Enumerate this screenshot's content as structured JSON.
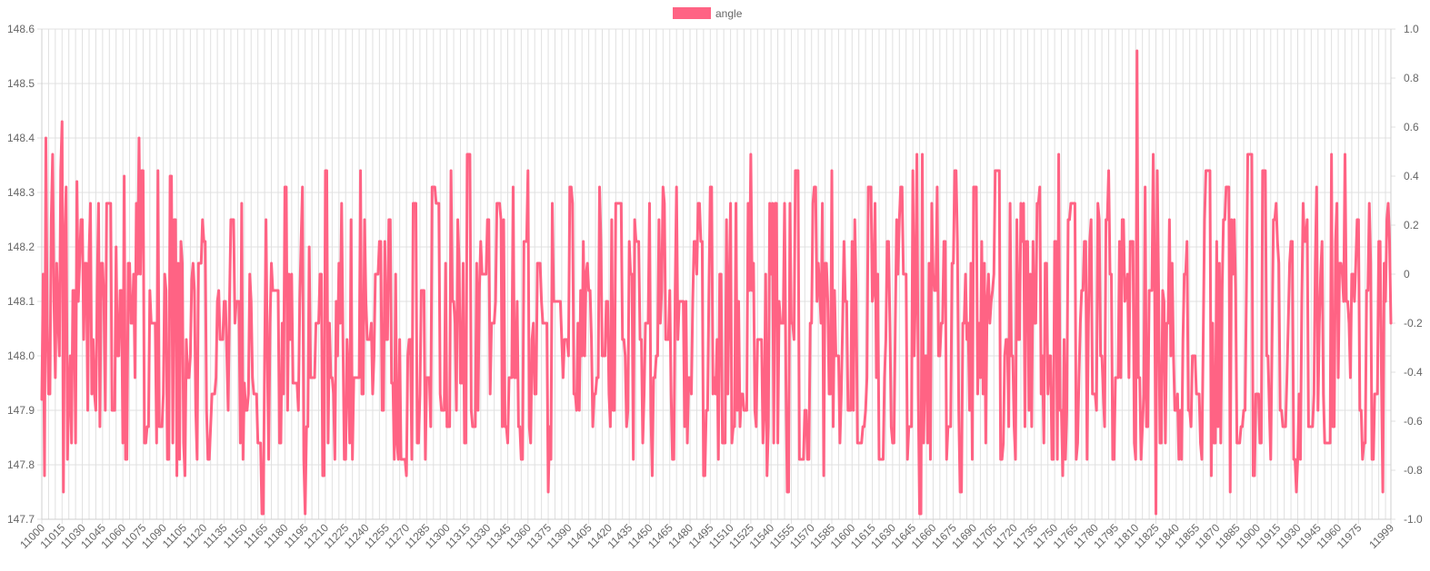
{
  "chart_data": {
    "type": "line",
    "legend": {
      "position": "top-center",
      "entries": [
        "angle"
      ]
    },
    "series": [
      {
        "name": "angle",
        "color": "#ff6384",
        "x_start": 11000,
        "x_end": 11999,
        "x_step": 1,
        "anchors": [
          [
            11000,
            147.92
          ],
          [
            11001,
            148.15
          ],
          [
            11002,
            147.78
          ],
          [
            11003,
            148.4
          ],
          [
            11005,
            147.93
          ],
          [
            11008,
            148.37
          ],
          [
            11012,
            148.07
          ],
          [
            11014,
            148.34
          ],
          [
            11015,
            148.43
          ],
          [
            11016,
            147.75
          ],
          [
            11018,
            148.31
          ],
          [
            11021,
            148.0
          ],
          [
            11023,
            148.12
          ],
          [
            11025,
            147.84
          ],
          [
            11026,
            148.32
          ],
          [
            11029,
            148.25
          ],
          [
            11035,
            148.19
          ],
          [
            11040,
            147.9
          ],
          [
            11044,
            148.17
          ],
          [
            11055,
            148.2
          ],
          [
            11060,
            147.84
          ],
          [
            11061,
            148.33
          ],
          [
            11062,
            147.81
          ],
          [
            11066,
            148.06
          ],
          [
            11070,
            148.28
          ],
          [
            11072,
            148.4
          ],
          [
            11074,
            148.34
          ],
          [
            11076,
            147.84
          ],
          [
            11080,
            148.12
          ],
          [
            11086,
            148.34
          ],
          [
            11090,
            147.93
          ],
          [
            11095,
            148.33
          ],
          [
            11100,
            147.78
          ],
          [
            11103,
            148.21
          ],
          [
            11106,
            147.78
          ],
          [
            11111,
            148.14
          ],
          [
            11115,
            147.81
          ],
          [
            11119,
            148.25
          ],
          [
            11126,
            147.93
          ],
          [
            11130,
            148.1
          ],
          [
            11140,
            148.25
          ],
          [
            11150,
            147.95
          ],
          [
            11155,
            148.1
          ],
          [
            11160,
            147.84
          ],
          [
            11163,
            147.71
          ],
          [
            11166,
            148.25
          ],
          [
            11171,
            148.12
          ],
          [
            11176,
            147.84
          ],
          [
            11180,
            148.31
          ],
          [
            11186,
            147.95
          ],
          [
            11193,
            148.31
          ],
          [
            11195,
            147.71
          ],
          [
            11198,
            148.2
          ],
          [
            11203,
            148.06
          ],
          [
            11208,
            147.78
          ],
          [
            11210,
            148.34
          ],
          [
            11216,
            147.93
          ],
          [
            11220,
            148.17
          ],
          [
            11228,
            147.84
          ],
          [
            11236,
            148.34
          ],
          [
            11245,
            147.93
          ],
          [
            11250,
            148.21
          ],
          [
            11259,
            147.95
          ],
          [
            11262,
            148.15
          ],
          [
            11270,
            147.78
          ],
          [
            11275,
            148.28
          ],
          [
            11280,
            147.93
          ],
          [
            11289,
            148.31
          ],
          [
            11296,
            147.9
          ],
          [
            11303,
            148.34
          ],
          [
            11310,
            147.95
          ],
          [
            11315,
            148.37
          ],
          [
            11318,
            147.9
          ],
          [
            11325,
            148.21
          ],
          [
            11332,
            147.93
          ],
          [
            11340,
            148.25
          ],
          [
            11345,
            147.84
          ],
          [
            11349,
            148.31
          ],
          [
            11355,
            147.81
          ],
          [
            11360,
            148.34
          ],
          [
            11365,
            147.93
          ],
          [
            11370,
            148.1
          ],
          [
            11375,
            147.75
          ],
          [
            11378,
            148.28
          ],
          [
            11385,
            148.03
          ],
          [
            11391,
            148.31
          ],
          [
            11396,
            147.9
          ],
          [
            11401,
            148.21
          ],
          [
            11408,
            147.87
          ],
          [
            11413,
            148.31
          ],
          [
            11420,
            147.93
          ],
          [
            11425,
            148.28
          ],
          [
            11433,
            147.87
          ],
          [
            11440,
            148.21
          ],
          [
            11446,
            147.93
          ],
          [
            11450,
            148.28
          ],
          [
            11452,
            147.78
          ],
          [
            11460,
            148.31
          ],
          [
            11466,
            147.93
          ],
          [
            11470,
            148.31
          ],
          [
            11476,
            147.87
          ],
          [
            11482,
            148.1
          ],
          [
            11490,
            147.78
          ],
          [
            11495,
            148.31
          ],
          [
            11500,
            148.03
          ],
          [
            11510,
            148.28
          ],
          [
            11515,
            147.9
          ],
          [
            11525,
            148.37
          ],
          [
            11530,
            148.03
          ],
          [
            11537,
            147.78
          ],
          [
            11541,
            148.28
          ],
          [
            11545,
            147.84
          ],
          [
            11552,
            147.75
          ],
          [
            11558,
            148.34
          ],
          [
            11565,
            147.9
          ],
          [
            11572,
            148.31
          ],
          [
            11579,
            147.78
          ],
          [
            11585,
            148.34
          ],
          [
            11590,
            148.0
          ],
          [
            11600,
            148.21
          ],
          [
            11605,
            147.84
          ],
          [
            11612,
            148.31
          ],
          [
            11620,
            147.81
          ],
          [
            11626,
            148.21
          ],
          [
            11632,
            148.06
          ],
          [
            11636,
            148.31
          ],
          [
            11642,
            147.87
          ],
          [
            11645,
            148.34
          ],
          [
            11648,
            148.37
          ],
          [
            11650,
            147.71
          ],
          [
            11652,
            148.37
          ],
          [
            11656,
            147.84
          ],
          [
            11663,
            148.31
          ],
          [
            11670,
            147.81
          ],
          [
            11676,
            148.34
          ],
          [
            11680,
            147.75
          ],
          [
            11684,
            148.15
          ],
          [
            11690,
            148.31
          ],
          [
            11694,
            148.06
          ],
          [
            11699,
            147.84
          ],
          [
            11706,
            148.34
          ],
          [
            11712,
            147.84
          ],
          [
            11717,
            148.28
          ],
          [
            11720,
            147.87
          ],
          [
            11726,
            148.21
          ],
          [
            11733,
            147.87
          ],
          [
            11739,
            148.31
          ],
          [
            11745,
            147.93
          ],
          [
            11750,
            148.21
          ],
          [
            11753,
            148.37
          ],
          [
            11756,
            147.78
          ],
          [
            11760,
            148.25
          ],
          [
            11766,
            147.81
          ],
          [
            11772,
            148.21
          ],
          [
            11778,
            147.93
          ],
          [
            11782,
            148.28
          ],
          [
            11786,
            147.93
          ],
          [
            11790,
            148.34
          ],
          [
            11795,
            147.96
          ],
          [
            11800,
            148.25
          ],
          [
            11805,
            147.96
          ],
          [
            11809,
            147.84
          ],
          [
            11811,
            148.56
          ],
          [
            11814,
            147.81
          ],
          [
            11817,
            148.31
          ],
          [
            11820,
            148.12
          ],
          [
            11823,
            148.37
          ],
          [
            11825,
            147.71
          ],
          [
            11826,
            148.34
          ],
          [
            11828,
            147.84
          ],
          [
            11835,
            148.25
          ],
          [
            11841,
            147.93
          ],
          [
            11848,
            148.21
          ],
          [
            11855,
            147.93
          ],
          [
            11862,
            148.34
          ],
          [
            11866,
            147.78
          ],
          [
            11870,
            148.21
          ],
          [
            11873,
            147.84
          ],
          [
            11877,
            148.31
          ],
          [
            11880,
            147.75
          ],
          [
            11883,
            148.25
          ],
          [
            11888,
            147.87
          ],
          [
            11893,
            148.37
          ],
          [
            11897,
            147.78
          ],
          [
            11904,
            148.34
          ],
          [
            11910,
            147.81
          ],
          [
            11915,
            148.21
          ],
          [
            11919,
            147.87
          ],
          [
            11925,
            148.21
          ],
          [
            11929,
            147.75
          ],
          [
            11933,
            148.1
          ],
          [
            11938,
            147.87
          ],
          [
            11944,
            148.31
          ],
          [
            11950,
            147.84
          ],
          [
            11955,
            148.37
          ],
          [
            11960,
            147.96
          ],
          [
            11965,
            148.37
          ],
          [
            11969,
            147.96
          ],
          [
            11974,
            148.25
          ],
          [
            11978,
            147.81
          ],
          [
            11983,
            148.28
          ],
          [
            11987,
            147.93
          ],
          [
            11990,
            148.21
          ],
          [
            11993,
            147.75
          ],
          [
            11996,
            148.25
          ],
          [
            11999,
            148.06
          ]
        ]
      }
    ],
    "x_tick_labels": [
      "11000",
      "11015",
      "11030",
      "11045",
      "11060",
      "11075",
      "11090",
      "11105",
      "11120",
      "11135",
      "11150",
      "11165",
      "11180",
      "11195",
      "11210",
      "11225",
      "11240",
      "11255",
      "11270",
      "11285",
      "11300",
      "11315",
      "11330",
      "11345",
      "11360",
      "11375",
      "11390",
      "11405",
      "11420",
      "11435",
      "11450",
      "11465",
      "11480",
      "11495",
      "11510",
      "11525",
      "11540",
      "11555",
      "11570",
      "11585",
      "11600",
      "11615",
      "11630",
      "11645",
      "11660",
      "11675",
      "11690",
      "11705",
      "11720",
      "11735",
      "11750",
      "11765",
      "11780",
      "11795",
      "11810",
      "11825",
      "11840",
      "11855",
      "11870",
      "11885",
      "11900",
      "11915",
      "11930",
      "11945",
      "11960",
      "11975",
      "11999"
    ],
    "y_left": {
      "min": 147.7,
      "max": 148.6,
      "ticks": [
        "148.6",
        "148.5",
        "148.4",
        "148.3",
        "148.2",
        "148.1",
        "148.0",
        "147.9",
        "147.8",
        "147.7"
      ]
    },
    "y_right": {
      "min": -1.0,
      "max": 1.0,
      "ticks": [
        "1.0",
        "0.8",
        "0.6",
        "0.4",
        "0.2",
        "0",
        "-0.2",
        "-0.4",
        "-0.6",
        "-0.8",
        "-1.0"
      ]
    },
    "grid": true,
    "colors": {
      "line": "#ff6384",
      "grid": "#e0e0e0",
      "text": "#666666"
    }
  }
}
